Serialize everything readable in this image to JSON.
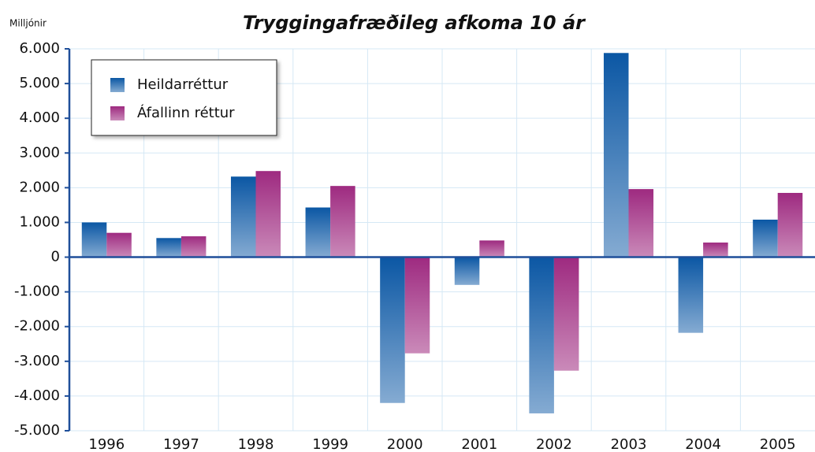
{
  "chart_data": {
    "type": "bar",
    "title": "Tryggingafræðileg afkoma 10 ár",
    "y_axis_label": "Milljónir",
    "categories": [
      "1996",
      "1997",
      "1998",
      "1999",
      "2000",
      "2001",
      "2002",
      "2003",
      "2004",
      "2005"
    ],
    "series": [
      {
        "name": "Heildarréttur",
        "color": "#0b57a4",
        "values": [
          1000,
          550,
          2320,
          1430,
          -4200,
          -800,
          -4500,
          5880,
          -2180,
          1080
        ]
      },
      {
        "name": "Áfallinn réttur",
        "color": "#9e2a80",
        "values": [
          700,
          600,
          2480,
          2050,
          -2770,
          480,
          -3270,
          1960,
          420,
          1850
        ]
      }
    ],
    "ylim": [
      -5000,
      6000
    ],
    "yticks": [
      {
        "value": 6000,
        "label": "6.000"
      },
      {
        "value": 5000,
        "label": "5.000"
      },
      {
        "value": 4000,
        "label": "4.000"
      },
      {
        "value": 3000,
        "label": "3.000"
      },
      {
        "value": 2000,
        "label": "2.000"
      },
      {
        "value": 1000,
        "label": "1.000"
      },
      0,
      {
        "value": -1000,
        "label": "-1.000"
      },
      {
        "value": -2000,
        "label": "-2.000"
      },
      {
        "value": -3000,
        "label": "-3.000"
      },
      {
        "value": -4000,
        "label": "-4.000"
      },
      {
        "value": -5000,
        "label": "-5.000"
      }
    ],
    "grid": true,
    "legend": "top-left"
  }
}
